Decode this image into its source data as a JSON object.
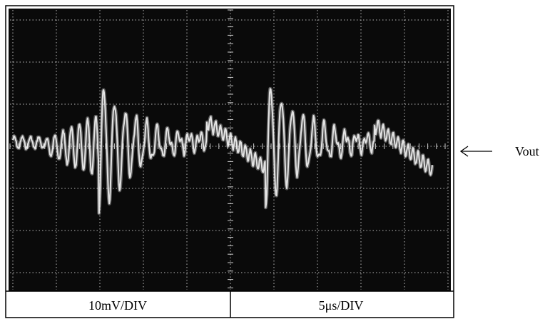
{
  "scope": {
    "vertical_scale": "10mV/DIV",
    "horizontal_scale": "5μs/DIV"
  },
  "annotation": {
    "label": "Vout"
  }
}
